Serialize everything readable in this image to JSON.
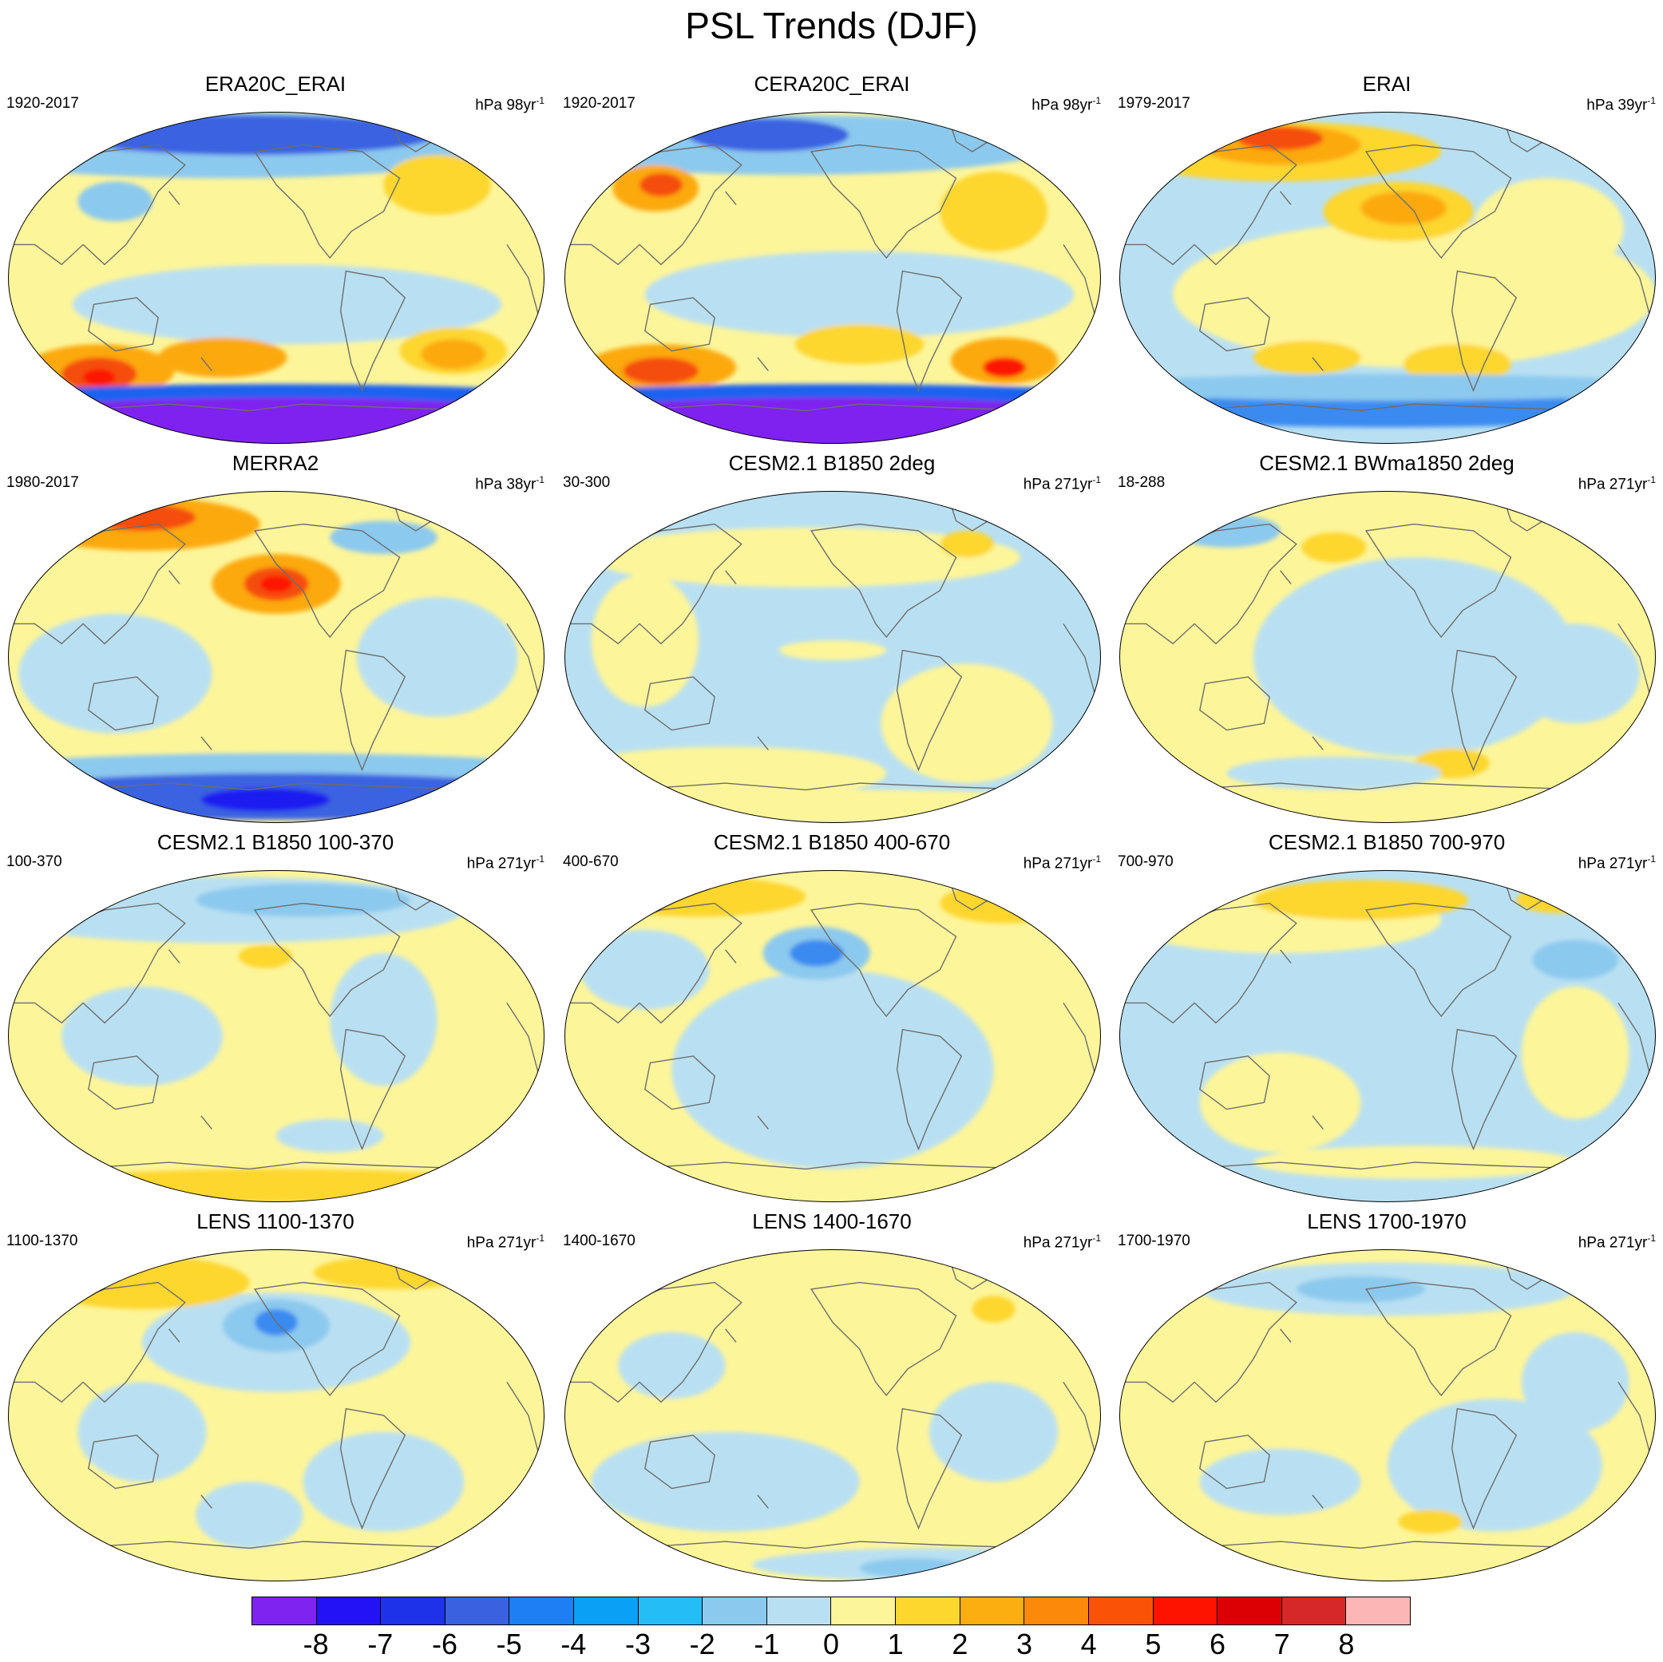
{
  "title": "PSL Trends (DJF)",
  "panels": [
    {
      "title": "ERA20C_ERAI",
      "left_text": "1920-2017",
      "units": "hPa 98yr",
      "exp": "-1",
      "bg": "#fdf59a",
      "blobs": [
        [
          "#b9e0f2",
          0.52,
          0.58,
          0.4,
          0.12
        ],
        [
          "#8cc9ee",
          0.4,
          0.1,
          0.55,
          0.1
        ],
        [
          "#3a62e0",
          0.45,
          0.07,
          0.35,
          0.06
        ],
        [
          "#fdd62e",
          0.8,
          0.22,
          0.1,
          0.09
        ],
        [
          "#fca90a",
          0.17,
          0.78,
          0.14,
          0.08
        ],
        [
          "#f54d0a",
          0.17,
          0.79,
          0.07,
          0.05
        ],
        [
          "#fd1300",
          0.17,
          0.8,
          0.03,
          0.025
        ],
        [
          "#fca90a",
          0.4,
          0.74,
          0.12,
          0.06
        ],
        [
          "#fdd62e",
          0.83,
          0.72,
          0.1,
          0.07
        ],
        [
          "#fca90a",
          0.83,
          0.73,
          0.06,
          0.045
        ],
        [
          "#1e62f0",
          0.5,
          0.86,
          0.55,
          0.04
        ],
        [
          "#7f24f0",
          0.5,
          0.94,
          0.6,
          0.08
        ],
        [
          "#8cc9ee",
          0.2,
          0.27,
          0.07,
          0.06
        ]
      ]
    },
    {
      "title": "CERA20C_ERAI",
      "left_text": "1920-2017",
      "units": "hPa 98yr",
      "exp": "-1",
      "bg": "#fdf59a",
      "blobs": [
        [
          "#b9e0f2",
          0.55,
          0.55,
          0.4,
          0.13
        ],
        [
          "#8cc9ee",
          0.42,
          0.1,
          0.5,
          0.09
        ],
        [
          "#3a62e0",
          0.38,
          0.07,
          0.15,
          0.05
        ],
        [
          "#fca90a",
          0.17,
          0.23,
          0.08,
          0.07
        ],
        [
          "#f54d0a",
          0.18,
          0.22,
          0.04,
          0.035
        ],
        [
          "#fdd62e",
          0.8,
          0.3,
          0.1,
          0.12
        ],
        [
          "#fca90a",
          0.18,
          0.77,
          0.14,
          0.07
        ],
        [
          "#f54d0a",
          0.18,
          0.78,
          0.07,
          0.04
        ],
        [
          "#fdd62e",
          0.55,
          0.7,
          0.12,
          0.06
        ],
        [
          "#fca90a",
          0.82,
          0.75,
          0.1,
          0.07
        ],
        [
          "#fd1300",
          0.82,
          0.77,
          0.04,
          0.03
        ],
        [
          "#1e62f0",
          0.5,
          0.86,
          0.55,
          0.04
        ],
        [
          "#7f24f0",
          0.5,
          0.94,
          0.6,
          0.08
        ]
      ]
    },
    {
      "title": "ERAI",
      "left_text": "1979-2017",
      "units": "hPa 39yr",
      "exp": "-1",
      "bg": "#b9e0f2",
      "blobs": [
        [
          "#fdf59a",
          0.55,
          0.55,
          0.45,
          0.22
        ],
        [
          "#fdd62e",
          0.3,
          0.12,
          0.3,
          0.09
        ],
        [
          "#fca90a",
          0.3,
          0.1,
          0.15,
          0.06
        ],
        [
          "#f54d0a",
          0.3,
          0.08,
          0.08,
          0.035
        ],
        [
          "#fdd62e",
          0.52,
          0.3,
          0.14,
          0.09
        ],
        [
          "#fca90a",
          0.53,
          0.29,
          0.08,
          0.05
        ],
        [
          "#fdf59a",
          0.8,
          0.35,
          0.14,
          0.15
        ],
        [
          "#fdd62e",
          0.35,
          0.74,
          0.1,
          0.05
        ],
        [
          "#fdd62e",
          0.63,
          0.76,
          0.1,
          0.06
        ],
        [
          "#3a8af0",
          0.5,
          0.9,
          0.5,
          0.05
        ],
        [
          "#8cc9ee",
          0.5,
          0.83,
          0.55,
          0.04
        ]
      ]
    },
    {
      "title": "MERRA2",
      "left_text": "1980-2017",
      "units": "hPa 38yr",
      "exp": "-1",
      "bg": "#fdf59a",
      "blobs": [
        [
          "#b9e0f2",
          0.2,
          0.55,
          0.18,
          0.18
        ],
        [
          "#b9e0f2",
          0.8,
          0.5,
          0.15,
          0.18
        ],
        [
          "#fca90a",
          0.25,
          0.1,
          0.22,
          0.08
        ],
        [
          "#f54d0a",
          0.25,
          0.08,
          0.1,
          0.04
        ],
        [
          "#fca90a",
          0.5,
          0.28,
          0.12,
          0.09
        ],
        [
          "#f54d0a",
          0.5,
          0.28,
          0.06,
          0.05
        ],
        [
          "#fd1300",
          0.5,
          0.28,
          0.03,
          0.025
        ],
        [
          "#8cc9ee",
          0.7,
          0.14,
          0.1,
          0.05
        ],
        [
          "#8cc9ee",
          0.5,
          0.84,
          0.55,
          0.05
        ],
        [
          "#3a62e0",
          0.5,
          0.92,
          0.55,
          0.07
        ],
        [
          "#1e1cf0",
          0.48,
          0.93,
          0.12,
          0.035
        ]
      ]
    },
    {
      "title": "CESM2.1 B1850 2deg",
      "left_text": "30-300",
      "units": "hPa 271yr",
      "exp": "-1",
      "bg": "#b9e0f2",
      "blobs": [
        [
          "#fdf59a",
          0.45,
          0.2,
          0.4,
          0.09
        ],
        [
          "#fdf59a",
          0.75,
          0.7,
          0.16,
          0.18
        ],
        [
          "#fdf59a",
          0.3,
          0.85,
          0.3,
          0.08
        ],
        [
          "#fdf59a",
          0.15,
          0.45,
          0.1,
          0.2
        ],
        [
          "#fdf59a",
          0.5,
          0.48,
          0.1,
          0.03
        ],
        [
          "#fdd62e",
          0.75,
          0.16,
          0.05,
          0.04
        ],
        [
          "#fdf59a",
          0.55,
          0.95,
          0.45,
          0.05
        ]
      ]
    },
    {
      "title": "CESM2.1 BWma1850 2deg",
      "left_text": "18-288",
      "units": "hPa 271yr",
      "exp": "-1",
      "bg": "#fdf59a",
      "blobs": [
        [
          "#b9e0f2",
          0.55,
          0.5,
          0.3,
          0.3
        ],
        [
          "#b9e0f2",
          0.85,
          0.55,
          0.12,
          0.15
        ],
        [
          "#8cc9ee",
          0.2,
          0.12,
          0.1,
          0.05
        ],
        [
          "#fdd62e",
          0.4,
          0.17,
          0.06,
          0.045
        ],
        [
          "#fdd62e",
          0.62,
          0.82,
          0.07,
          0.045
        ],
        [
          "#b9e0f2",
          0.4,
          0.85,
          0.2,
          0.05
        ]
      ]
    },
    {
      "title": "CESM2.1 B1850 100-370",
      "left_text": "100-370",
      "units": "hPa 271yr",
      "exp": "-1",
      "bg": "#fdf59a",
      "blobs": [
        [
          "#b9e0f2",
          0.4,
          0.12,
          0.45,
          0.1
        ],
        [
          "#8cc9ee",
          0.55,
          0.09,
          0.2,
          0.05
        ],
        [
          "#b9e0f2",
          0.25,
          0.5,
          0.15,
          0.15
        ],
        [
          "#b9e0f2",
          0.7,
          0.45,
          0.1,
          0.2
        ],
        [
          "#fdd62e",
          0.5,
          0.95,
          0.45,
          0.05
        ],
        [
          "#fdd62e",
          0.48,
          0.26,
          0.05,
          0.035
        ],
        [
          "#b9e0f2",
          0.6,
          0.8,
          0.1,
          0.05
        ]
      ]
    },
    {
      "title": "CESM2.1 B1850 400-670",
      "left_text": "400-670",
      "units": "hPa 271yr",
      "exp": "-1",
      "bg": "#fdf59a",
      "blobs": [
        [
          "#b9e0f2",
          0.5,
          0.6,
          0.3,
          0.3
        ],
        [
          "#8cc9ee",
          0.47,
          0.25,
          0.1,
          0.08
        ],
        [
          "#3a8af0",
          0.47,
          0.25,
          0.05,
          0.04
        ],
        [
          "#fdd62e",
          0.25,
          0.08,
          0.2,
          0.06
        ],
        [
          "#fdd62e",
          0.82,
          0.1,
          0.12,
          0.06
        ],
        [
          "#b9e0f2",
          0.15,
          0.3,
          0.12,
          0.12
        ]
      ]
    },
    {
      "title": "CESM2.1 B1850 700-970",
      "left_text": "700-970",
      "units": "hPa 271yr",
      "exp": "-1",
      "bg": "#b9e0f2",
      "blobs": [
        [
          "#fdf59a",
          0.3,
          0.15,
          0.3,
          0.1
        ],
        [
          "#fdd62e",
          0.45,
          0.09,
          0.2,
          0.06
        ],
        [
          "#fdd62e",
          0.82,
          0.09,
          0.08,
          0.04
        ],
        [
          "#fdf59a",
          0.3,
          0.7,
          0.15,
          0.15
        ],
        [
          "#fdf59a",
          0.85,
          0.55,
          0.1,
          0.2
        ],
        [
          "#8cc9ee",
          0.85,
          0.27,
          0.08,
          0.06
        ],
        [
          "#fdf59a",
          0.55,
          0.88,
          0.3,
          0.05
        ]
      ]
    },
    {
      "title": "LENS 1100-1370",
      "left_text": "1100-1370",
      "units": "hPa 271yr",
      "exp": "-1",
      "bg": "#fdf59a",
      "blobs": [
        [
          "#b9e0f2",
          0.5,
          0.28,
          0.25,
          0.15
        ],
        [
          "#8cc9ee",
          0.5,
          0.23,
          0.1,
          0.08
        ],
        [
          "#3a8af0",
          0.5,
          0.22,
          0.04,
          0.04
        ],
        [
          "#fdd62e",
          0.25,
          0.1,
          0.2,
          0.08
        ],
        [
          "#fdd62e",
          0.72,
          0.07,
          0.15,
          0.05
        ],
        [
          "#b9e0f2",
          0.25,
          0.55,
          0.12,
          0.15
        ],
        [
          "#b9e0f2",
          0.7,
          0.7,
          0.15,
          0.15
        ],
        [
          "#b9e0f2",
          0.45,
          0.8,
          0.1,
          0.1
        ]
      ]
    },
    {
      "title": "LENS 1400-1670",
      "left_text": "1400-1670",
      "units": "hPa 271yr",
      "exp": "-1",
      "bg": "#fdf59a",
      "blobs": [
        [
          "#b9e0f2",
          0.3,
          0.7,
          0.25,
          0.15
        ],
        [
          "#b9e0f2",
          0.8,
          0.55,
          0.12,
          0.15
        ],
        [
          "#b9e0f2",
          0.7,
          0.95,
          0.35,
          0.05
        ],
        [
          "#8cc9ee",
          0.65,
          0.96,
          0.1,
          0.03
        ],
        [
          "#fdd62e",
          0.8,
          0.18,
          0.04,
          0.04
        ],
        [
          "#b9e0f2",
          0.2,
          0.35,
          0.1,
          0.1
        ]
      ]
    },
    {
      "title": "LENS 1700-1970",
      "left_text": "1700-1970",
      "units": "hPa 271yr",
      "exp": "-1",
      "bg": "#fdf59a",
      "blobs": [
        [
          "#b9e0f2",
          0.5,
          0.12,
          0.35,
          0.08
        ],
        [
          "#8cc9ee",
          0.45,
          0.12,
          0.12,
          0.04
        ],
        [
          "#b9e0f2",
          0.7,
          0.65,
          0.2,
          0.2
        ],
        [
          "#b9e0f2",
          0.3,
          0.7,
          0.15,
          0.1
        ],
        [
          "#fdd62e",
          0.58,
          0.82,
          0.06,
          0.035
        ],
        [
          "#b9e0f2",
          0.85,
          0.4,
          0.1,
          0.15
        ]
      ]
    }
  ],
  "colorbar": {
    "colors": [
      "#7f24f0",
      "#2212f5",
      "#1e32ea",
      "#3a62e0",
      "#1e7ef3",
      "#0aa0f5",
      "#25bdf5",
      "#8cc9ee",
      "#b9e0f2",
      "#fdf59a",
      "#fdd62e",
      "#fcad10",
      "#fc8a0a",
      "#fa5307",
      "#fd1300",
      "#dc0005",
      "#d62828",
      "#fdb6b6"
    ],
    "labels": [
      "-8",
      "-7",
      "-6",
      "-5",
      "-4",
      "-3",
      "-2",
      "-1",
      "0",
      "1",
      "2",
      "3",
      "4",
      "5",
      "6",
      "7",
      "8"
    ]
  }
}
